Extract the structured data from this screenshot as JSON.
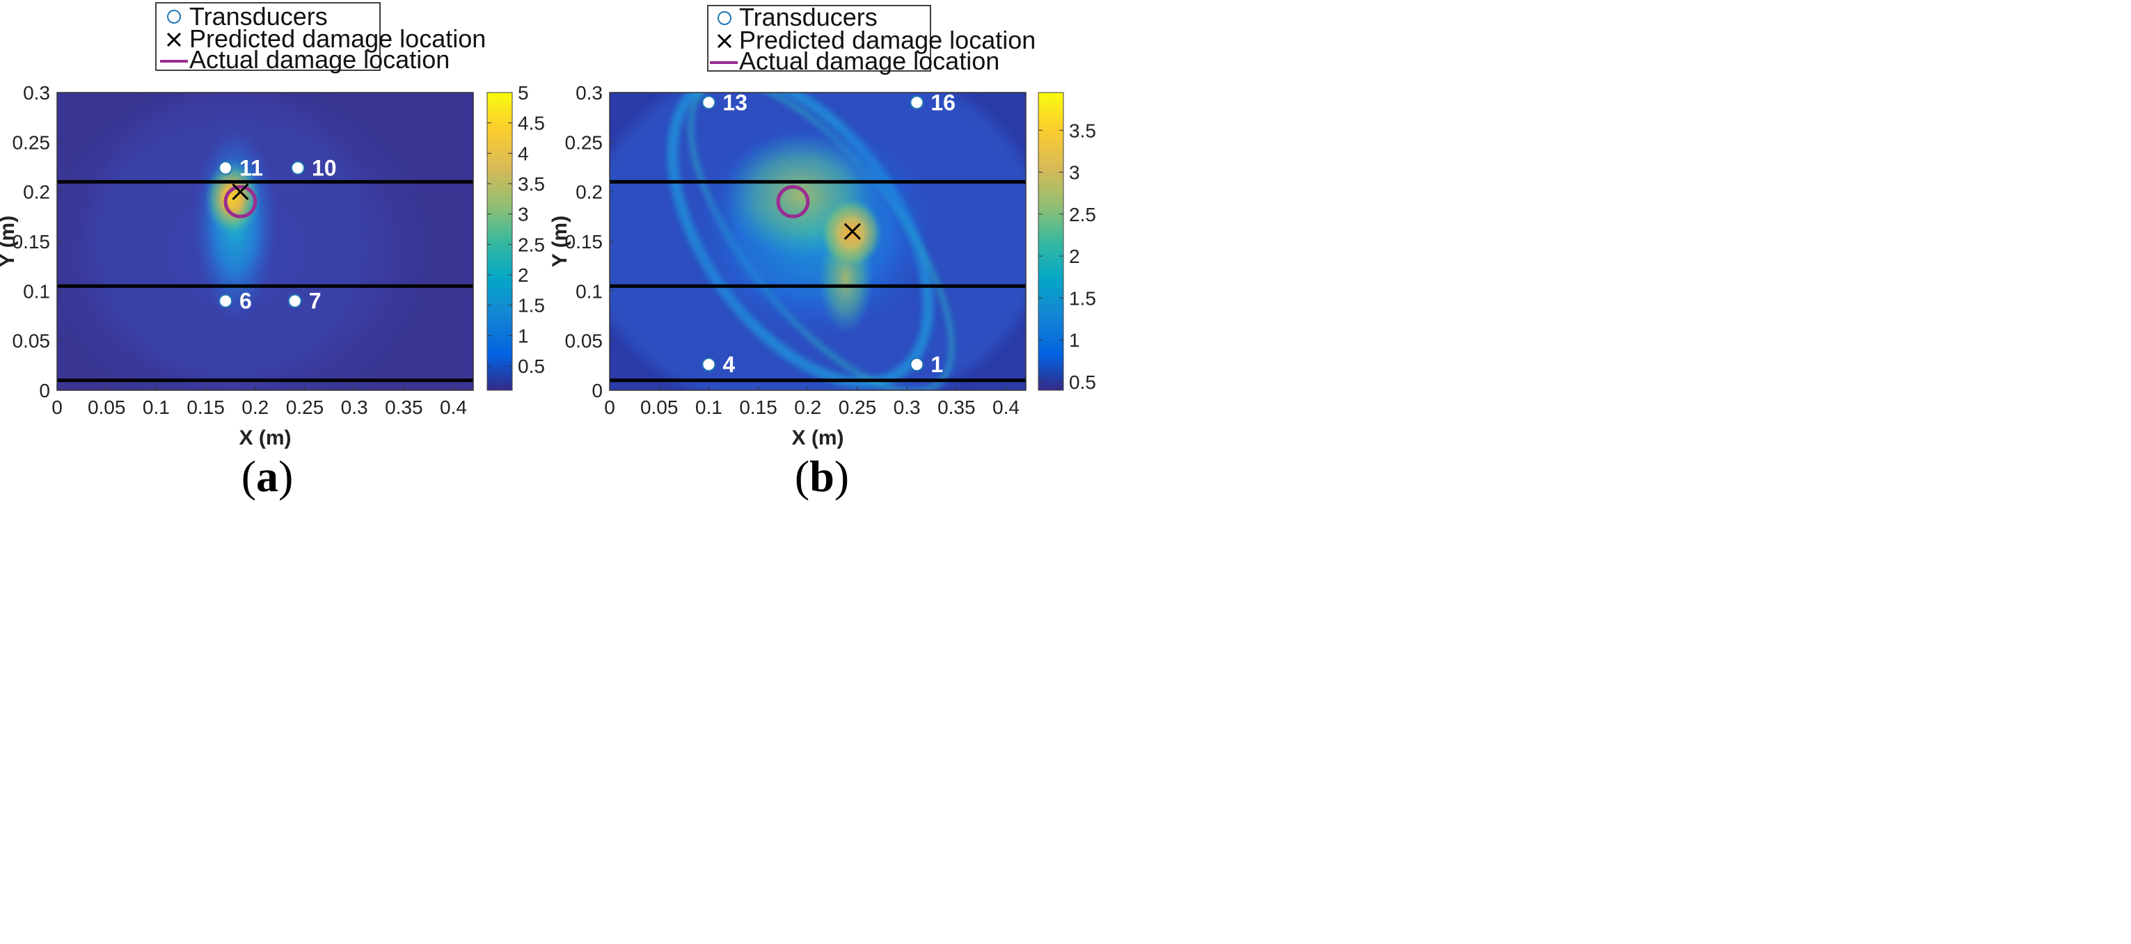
{
  "legend": {
    "transducers": "Transducers",
    "predicted": "Predicted damage location",
    "actual": "Actual damage location"
  },
  "colors": {
    "marker_fill": "#ffffff",
    "marker_edge": "#1f77b4",
    "actual_circle": "#9b2d91",
    "cross": "#000000",
    "lines": "#000000"
  },
  "chart_data": [
    {
      "type": "heatmap",
      "panel": "(a)",
      "panel_letter": "a",
      "xlabel": "X (m)",
      "ylabel": "Y (m)",
      "xlim": [
        0,
        0.42
      ],
      "ylim": [
        0,
        0.3
      ],
      "xticks": [
        "0",
        "0.05",
        "0.1",
        "0.15",
        "0.2",
        "0.25",
        "0.3",
        "0.35",
        "0.4"
      ],
      "xtick_values": [
        0,
        0.05,
        0.1,
        0.15,
        0.2,
        0.25,
        0.3,
        0.35,
        0.4
      ],
      "yticks": [
        "0",
        "0.05",
        "0.1",
        "0.15",
        "0.2",
        "0.25",
        "0.3"
      ],
      "ytick_values": [
        0,
        0.05,
        0.1,
        0.15,
        0.2,
        0.25,
        0.3
      ],
      "colorbar": {
        "min": 0.1,
        "max": 5,
        "ticks": [
          "0.5",
          "1",
          "1.5",
          "2",
          "2.5",
          "3",
          "3.5",
          "4",
          "4.5",
          "5"
        ],
        "tick_values": [
          0.5,
          1,
          1.5,
          2,
          2.5,
          3,
          3.5,
          4,
          4.5,
          5
        ]
      },
      "horizontal_lines_y": [
        0.21,
        0.105,
        0.01
      ],
      "transducers": [
        {
          "id": "11",
          "x": 0.17,
          "y": 0.224
        },
        {
          "id": "10",
          "x": 0.243,
          "y": 0.224
        },
        {
          "id": "6",
          "x": 0.17,
          "y": 0.09
        },
        {
          "id": "7",
          "x": 0.24,
          "y": 0.09
        }
      ],
      "predicted": {
        "x": 0.185,
        "y": 0.2
      },
      "actual": {
        "x": 0.185,
        "y": 0.19,
        "r": 0.015
      }
    },
    {
      "type": "heatmap",
      "panel": "(b)",
      "panel_letter": "b",
      "xlabel": "X (m)",
      "ylabel": "Y (m)",
      "xlim": [
        0,
        0.42
      ],
      "ylim": [
        0,
        0.3
      ],
      "xticks": [
        "0",
        "0.05",
        "0.1",
        "0.15",
        "0.2",
        "0.25",
        "0.3",
        "0.35",
        "0.4"
      ],
      "xtick_values": [
        0,
        0.05,
        0.1,
        0.15,
        0.2,
        0.25,
        0.3,
        0.35,
        0.4
      ],
      "yticks": [
        "0",
        "0.05",
        "0.1",
        "0.15",
        "0.2",
        "0.25",
        "0.3"
      ],
      "ytick_values": [
        0,
        0.05,
        0.1,
        0.15,
        0.2,
        0.25,
        0.3
      ],
      "colorbar": {
        "min": 0.4,
        "max": 3.95,
        "ticks": [
          "0.5",
          "1",
          "1.5",
          "2",
          "2.5",
          "3",
          "3.5"
        ],
        "tick_values": [
          0.5,
          1,
          1.5,
          2,
          2.5,
          3,
          3.5
        ]
      },
      "horizontal_lines_y": [
        0.21,
        0.105,
        0.01
      ],
      "transducers": [
        {
          "id": "13",
          "x": 0.1,
          "y": 0.29
        },
        {
          "id": "16",
          "x": 0.31,
          "y": 0.29
        },
        {
          "id": "4",
          "x": 0.1,
          "y": 0.026
        },
        {
          "id": "1",
          "x": 0.31,
          "y": 0.026
        }
      ],
      "predicted": {
        "x": 0.245,
        "y": 0.16
      },
      "actual": {
        "x": 0.185,
        "y": 0.19,
        "r": 0.015
      }
    }
  ]
}
